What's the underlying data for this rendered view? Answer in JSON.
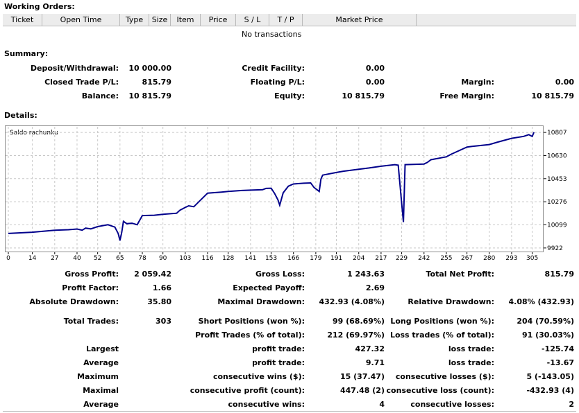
{
  "working_orders": {
    "title": "Working Orders:",
    "columns": [
      "Ticket",
      "Open Time",
      "Type",
      "Size",
      "Item",
      "Price",
      "S / L",
      "T / P",
      "Market Price",
      ""
    ],
    "empty_message": "No transactions"
  },
  "summary": {
    "title": "Summary:",
    "deposit_label": "Deposit/Withdrawal:",
    "deposit_value": "10 000.00",
    "closed_label": "Closed Trade P/L:",
    "closed_value": "815.79",
    "balance_label": "Balance:",
    "balance_value": "10 815.79",
    "credit_label": "Credit Facility:",
    "credit_value": "0.00",
    "floating_label": "Floating P/L:",
    "floating_value": "0.00",
    "equity_label": "Equity:",
    "equity_value": "10 815.79",
    "margin_label": "Margin:",
    "margin_value": "0.00",
    "free_margin_label": "Free Margin:",
    "free_margin_value": "10 815.79"
  },
  "details": {
    "title": "Details:",
    "stats": [
      [
        "Gross Profit:",
        "2 059.42",
        "Gross Loss:",
        "1 243.63",
        "Total Net Profit:",
        "815.79"
      ],
      [
        "Profit Factor:",
        "1.66",
        "Expected Payoff:",
        "2.69",
        "",
        ""
      ],
      [
        "Absolute Drawdown:",
        "35.80",
        "Maximal Drawdown:",
        "432.93 (4.08%)",
        "Relative Drawdown:",
        "4.08% (432.93)"
      ],
      [
        "Total Trades:",
        "303",
        "Short Positions (won %):",
        "99 (68.69%)",
        "Long Positions (won %):",
        "204 (70.59%)"
      ],
      [
        "",
        "",
        "Profit Trades (% of total):",
        "212 (69.97%)",
        "Loss trades (% of total):",
        "91 (30.03%)"
      ],
      [
        "Largest",
        "",
        "profit trade:",
        "427.32",
        "loss trade:",
        "-125.74"
      ],
      [
        "Average",
        "",
        "profit trade:",
        "9.71",
        "loss trade:",
        "-13.67"
      ],
      [
        "Maximum",
        "",
        "consecutive wins ($):",
        "15 (37.47)",
        "consecutive losses ($):",
        "5 (-143.05)"
      ],
      [
        "Maximal",
        "",
        "consecutive profit (count):",
        "447.48 (2)",
        "consecutive loss (count):",
        "-432.93 (4)"
      ],
      [
        "Average",
        "",
        "consecutive wins:",
        "4",
        "consecutive losses:",
        "2"
      ]
    ]
  },
  "chart_data": {
    "type": "line",
    "title": "Saldo rachunku",
    "xlabel": "",
    "ylabel": "",
    "x_ticks": [
      0,
      14,
      27,
      40,
      52,
      65,
      78,
      90,
      103,
      116,
      128,
      141,
      153,
      166,
      179,
      191,
      204,
      217,
      229,
      242,
      255,
      267,
      280,
      293,
      305
    ],
    "y_ticks": [
      9922,
      10099,
      10276,
      10453,
      10630,
      10807
    ],
    "xlim": [
      0,
      310
    ],
    "ylim": [
      9900,
      10850
    ],
    "line_color": "#00008b",
    "series": [
      {
        "x": [
          0,
          14,
          27,
          35,
          40,
          43,
          45,
          48,
          52,
          58,
          62,
          64,
          65,
          66,
          67,
          69,
          72,
          75,
          78,
          85,
          90,
          98,
          100,
          103,
          105,
          108,
          116,
          124,
          128,
          136,
          141,
          148,
          150,
          153,
          155,
          157,
          158,
          160,
          163,
          166,
          172,
          176,
          178,
          179,
          181,
          182,
          183,
          191,
          195,
          204,
          210,
          217,
          225,
          227,
          228,
          229,
          230,
          231,
          242,
          244,
          246,
          255,
          258,
          267,
          270,
          280,
          285,
          293,
          300,
          303,
          305,
          306
        ],
        "y": [
          10033,
          10043,
          10058,
          10062,
          10067,
          10058,
          10074,
          10068,
          10086,
          10100,
          10082,
          10032,
          9979,
          10040,
          10126,
          10108,
          10112,
          10100,
          10170,
          10173,
          10180,
          10188,
          10212,
          10232,
          10245,
          10238,
          10342,
          10350,
          10355,
          10362,
          10365,
          10368,
          10378,
          10380,
          10340,
          10290,
          10250,
          10345,
          10395,
          10412,
          10418,
          10420,
          10385,
          10375,
          10355,
          10450,
          10480,
          10500,
          10510,
          10525,
          10535,
          10548,
          10560,
          10556,
          10410,
          10262,
          10120,
          10560,
          10565,
          10578,
          10598,
          10620,
          10641,
          10695,
          10700,
          10714,
          10733,
          10762,
          10777,
          10790,
          10776,
          10808
        ]
      }
    ]
  }
}
